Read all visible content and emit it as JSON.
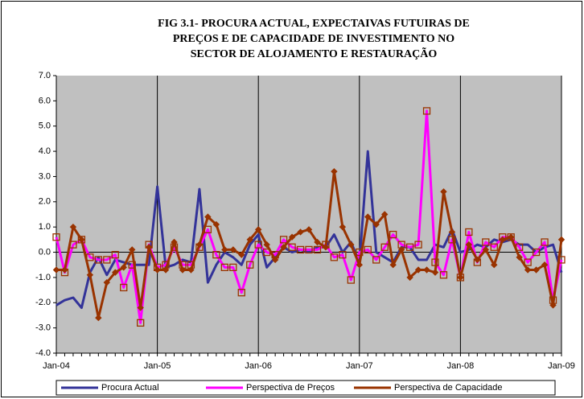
{
  "chart_data": {
    "type": "line",
    "title": [
      "FIG 3.1- PROCURA ACTUAL, EXPECTAIVAS FUTUIRAS DE",
      "PREÇOS E DE  CAPACIDADE DE INVESTIMENTO NO",
      "SECTOR DE ALOJAMENTO E RESTAURAÇÃO"
    ],
    "categories": [
      "Jan-04",
      null,
      null,
      null,
      null,
      null,
      null,
      null,
      null,
      null,
      null,
      null,
      "Jan-05",
      null,
      null,
      null,
      null,
      null,
      null,
      null,
      null,
      null,
      null,
      null,
      "Jan-06",
      null,
      null,
      null,
      null,
      null,
      null,
      null,
      null,
      null,
      null,
      null,
      "Jan-07",
      null,
      null,
      null,
      null,
      null,
      null,
      null,
      null,
      null,
      null,
      null,
      "Jan-08",
      null,
      null,
      null,
      null,
      null,
      null,
      null,
      null,
      null,
      null,
      null,
      "Jan-09"
    ],
    "series": [
      {
        "name": "Procura Actual",
        "color": "#333399",
        "marker": "none",
        "values": [
          -2.1,
          -1.9,
          -1.8,
          -2.2,
          -0.8,
          -0.2,
          -0.9,
          -0.3,
          -0.4,
          -0.5,
          -0.5,
          -0.5,
          2.6,
          -0.6,
          -0.5,
          -0.3,
          -0.4,
          2.5,
          -1.2,
          -0.5,
          0.0,
          -0.2,
          -0.5,
          0.3,
          0.7,
          -0.6,
          -0.2,
          0.2,
          0.0,
          0.1,
          0.0,
          0.2,
          0.2,
          0.7,
          0.0,
          0.4,
          -0.4,
          4.0,
          0.0,
          -0.2,
          -0.4,
          0.2,
          0.2,
          -0.3,
          -0.3,
          0.3,
          0.2,
          0.9,
          0.0,
          0.1,
          0.3,
          0.2,
          0.5,
          0.4,
          0.5,
          0.3,
          0.3,
          0.0,
          0.2,
          0.3,
          -0.8
        ]
      },
      {
        "name": "Perspectiva de Preços",
        "color": "#ff00ff",
        "marker": "square",
        "values": [
          0.6,
          -0.8,
          0.3,
          0.5,
          -0.2,
          -0.3,
          -0.3,
          -0.1,
          -1.4,
          -0.5,
          -2.8,
          0.3,
          -0.6,
          -0.5,
          0.2,
          -0.5,
          -0.5,
          0.2,
          0.9,
          -0.1,
          -0.6,
          -0.6,
          -1.6,
          -0.5,
          0.3,
          0.0,
          -0.1,
          0.5,
          0.2,
          0.1,
          0.1,
          0.1,
          0.3,
          -0.2,
          -0.1,
          -1.1,
          0.0,
          0.1,
          -0.3,
          0.2,
          0.7,
          0.3,
          0.2,
          0.3,
          5.6,
          -0.4,
          -0.9,
          0.5,
          -1.0,
          0.8,
          -0.4,
          0.4,
          0.2,
          0.6,
          0.6,
          0.2,
          -0.4,
          0.0,
          0.4,
          -1.9,
          -0.3
        ]
      },
      {
        "name": "Perspectiva de Capacidade",
        "color": "#993300",
        "marker": "diamond",
        "values": [
          -0.7,
          -0.7,
          1.0,
          0.5,
          -0.9,
          -2.6,
          -1.2,
          -0.8,
          -0.6,
          0.1,
          -2.2,
          0.2,
          -0.7,
          -0.7,
          0.4,
          -0.7,
          -0.7,
          0.3,
          1.4,
          1.1,
          0.1,
          0.1,
          -0.1,
          0.5,
          0.9,
          0.3,
          -0.3,
          0.2,
          0.6,
          0.8,
          0.9,
          0.4,
          0.2,
          3.2,
          1.0,
          0.3,
          -0.5,
          1.4,
          1.1,
          1.5,
          -0.5,
          0.1,
          -1.0,
          -0.7,
          -0.7,
          -0.8,
          2.4,
          0.8,
          -1.0,
          0.3,
          -0.3,
          0.1,
          -0.5,
          0.5,
          0.6,
          -0.2,
          -0.7,
          -0.7,
          -0.5,
          -2.1,
          0.5
        ]
      }
    ],
    "ylim": [
      -4,
      7
    ],
    "yticks": [
      {
        "value": -4,
        "label": "-4.0"
      },
      {
        "value": -3,
        "label": "-3.0"
      },
      {
        "value": -2,
        "label": "-2.0"
      },
      {
        "value": -1,
        "label": "-1.0"
      },
      {
        "value": 0,
        "label": "0.0"
      },
      {
        "value": 1,
        "label": "1.0"
      },
      {
        "value": 2,
        "label": "2.0"
      },
      {
        "value": 3,
        "label": "3.0"
      },
      {
        "value": 4,
        "label": "4.0"
      },
      {
        "value": 5,
        "label": "5.0"
      },
      {
        "value": 6,
        "label": "6.0"
      },
      {
        "value": 7,
        "label": "7.0"
      }
    ],
    "plot_background": "#c0c0c0",
    "legend": "bottom"
  }
}
